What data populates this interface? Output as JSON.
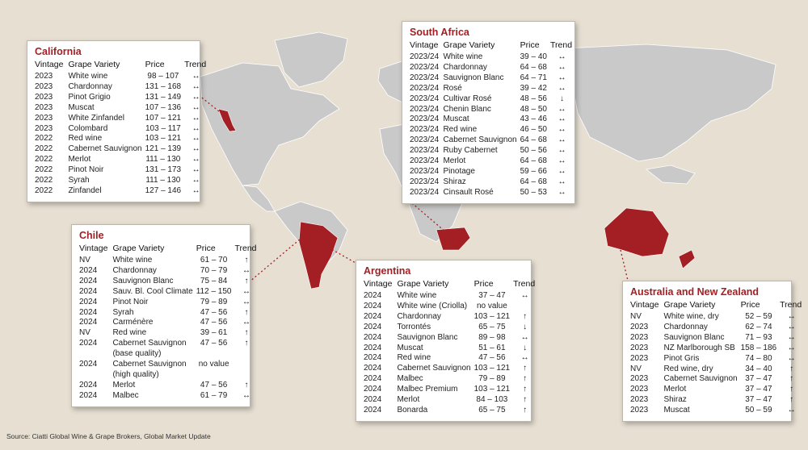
{
  "colors": {
    "background": "#e7dfd2",
    "land": "#c9c9c9",
    "highlight": "#a31f23",
    "title": "#a31f23"
  },
  "headers": {
    "vintage": "Vintage",
    "variety": "Grape Variety",
    "price": "Price",
    "trend": "Trend"
  },
  "panels": {
    "california": {
      "title": "California",
      "rows": [
        [
          "2023",
          "White wine",
          "98 – 107",
          "↔"
        ],
        [
          "2023",
          "Chardonnay",
          "131 – 168",
          "↔"
        ],
        [
          "2023",
          "Pinot Grigio",
          "131 – 149",
          "↔"
        ],
        [
          "2023",
          "Muscat",
          "107 – 136",
          "↔"
        ],
        [
          "2023",
          "White Zinfandel",
          "107 – 121",
          "↔"
        ],
        [
          "2023",
          "Colombard",
          "103 – 117",
          "↔"
        ],
        [
          "2022",
          "Red wine",
          "103 – 121",
          "↔"
        ],
        [
          "2022",
          "Cabernet Sauvignon",
          "121 – 139",
          "↔"
        ],
        [
          "2022",
          "Merlot",
          "111 – 130",
          "↔"
        ],
        [
          "2022",
          "Pinot Noir",
          "131 – 173",
          "↔"
        ],
        [
          "2022",
          "Syrah",
          "111 – 130",
          "↔"
        ],
        [
          "2022",
          "Zinfandel",
          "127 – 146",
          "↔"
        ]
      ]
    },
    "south_africa": {
      "title": "South Africa",
      "rows": [
        [
          "2023/24",
          "White wine",
          "39 – 40",
          "↔"
        ],
        [
          "2023/24",
          "Chardonnay",
          "64 – 68",
          "↔"
        ],
        [
          "2023/24",
          "Sauvignon Blanc",
          "64 – 71",
          "↔"
        ],
        [
          "2023/24",
          "Rosé",
          "39 – 42",
          "↔"
        ],
        [
          "2023/24",
          "Cultivar Rosé",
          "48 – 56",
          "↓"
        ],
        [
          "2023/24",
          "Chenin Blanc",
          "48 – 50",
          "↔"
        ],
        [
          "2023/24",
          "Muscat",
          "43 – 46",
          "↔"
        ],
        [
          "2023/24",
          "Red wine",
          "46 – 50",
          "↔"
        ],
        [
          "2023/24",
          "Cabernet Sauvignon",
          "64 – 68",
          "↔"
        ],
        [
          "2023/24",
          "Ruby Cabernet",
          "50 – 56",
          "↔"
        ],
        [
          "2023/24",
          "Merlot",
          "64 – 68",
          "↔"
        ],
        [
          "2023/24",
          "Pinotage",
          "59 – 66",
          "↔"
        ],
        [
          "2023/24",
          "Shiraz",
          "64 – 68",
          "↔"
        ],
        [
          "2023/24",
          "Cinsault Rosé",
          "50 – 53",
          "↔"
        ]
      ]
    },
    "chile": {
      "title": "Chile",
      "rows": [
        [
          "NV",
          "White wine",
          "61 – 70",
          "↑"
        ],
        [
          "2024",
          "Chardonnay",
          "70 – 79",
          "↔"
        ],
        [
          "2024",
          "Sauvignon Blanc",
          "75 – 84",
          "↑"
        ],
        [
          "2024",
          "Sauv. Bl. Cool Climate",
          "112 – 150",
          "↔"
        ],
        [
          "2024",
          "Pinot Noir",
          "79 – 89",
          "↔"
        ],
        [
          "2024",
          "Syrah",
          "47 – 56",
          "↑"
        ],
        [
          "2024",
          "Carménère",
          "47 – 56",
          "↔"
        ],
        [
          "NV",
          "Red wine",
          "39 – 61",
          "↑"
        ],
        [
          "2024",
          "Cabernet Sauvignon\n(base quality)",
          "47 – 56",
          "↑"
        ],
        [
          "2024",
          "Cabernet Sauvignon\n(high quality)",
          "no value",
          ""
        ],
        [
          "2024",
          "Merlot",
          "47 – 56",
          "↑"
        ],
        [
          "2024",
          "Malbec",
          "61 – 79",
          "↔"
        ]
      ]
    },
    "argentina": {
      "title": "Argentina",
      "rows": [
        [
          "2024",
          "White wine",
          "37 – 47",
          "↔"
        ],
        [
          "2024",
          "White wine (Criolla)",
          "no value",
          ""
        ],
        [
          "2024",
          "Chardonnay",
          "103 – 121",
          "↑"
        ],
        [
          "2024",
          "Torrontés",
          "65 – 75",
          "↓"
        ],
        [
          "2024",
          "Sauvignon Blanc",
          "89 – 98",
          "↔"
        ],
        [
          "2024",
          "Muscat",
          "51 – 61",
          "↓"
        ],
        [
          "2024",
          "Red wine",
          "47 – 56",
          "↔"
        ],
        [
          "2024",
          "Cabernet Sauvignon",
          "103 – 121",
          "↑"
        ],
        [
          "2024",
          "Malbec",
          "79 – 89",
          "↑"
        ],
        [
          "2024",
          "Malbec Premium",
          "103 – 121",
          "↑"
        ],
        [
          "2024",
          "Merlot",
          "84 – 103",
          "↑"
        ],
        [
          "2024",
          "Bonarda",
          "65 – 75",
          "↑"
        ]
      ]
    },
    "australia_nz": {
      "title": "Australia and New Zealand",
      "rows": [
        [
          "NV",
          "White wine, dry",
          "52 – 59",
          "↔"
        ],
        [
          "2023",
          "Chardonnay",
          "62 – 74",
          "↔"
        ],
        [
          "2023",
          "Sauvignon Blanc",
          "71 – 93",
          "↔"
        ],
        [
          "2023",
          "NZ Marlborough SB",
          "158 – 186",
          "↔"
        ],
        [
          "2023",
          "Pinot Gris",
          "74 – 80",
          "↔"
        ],
        [
          "NV",
          "Red wine, dry",
          "34 – 40",
          "↑"
        ],
        [
          "2023",
          "Cabernet Sauvignon",
          "37 – 47",
          "↑"
        ],
        [
          "2023",
          "Merlot",
          "37 – 47",
          "↑"
        ],
        [
          "2023",
          "Shiraz",
          "37 – 47",
          "↑"
        ],
        [
          "2023",
          "Muscat",
          "50 – 59",
          "↔"
        ]
      ]
    }
  },
  "source": "Source: Ciatti Global Wine & Grape Brokers, Global Market Update"
}
